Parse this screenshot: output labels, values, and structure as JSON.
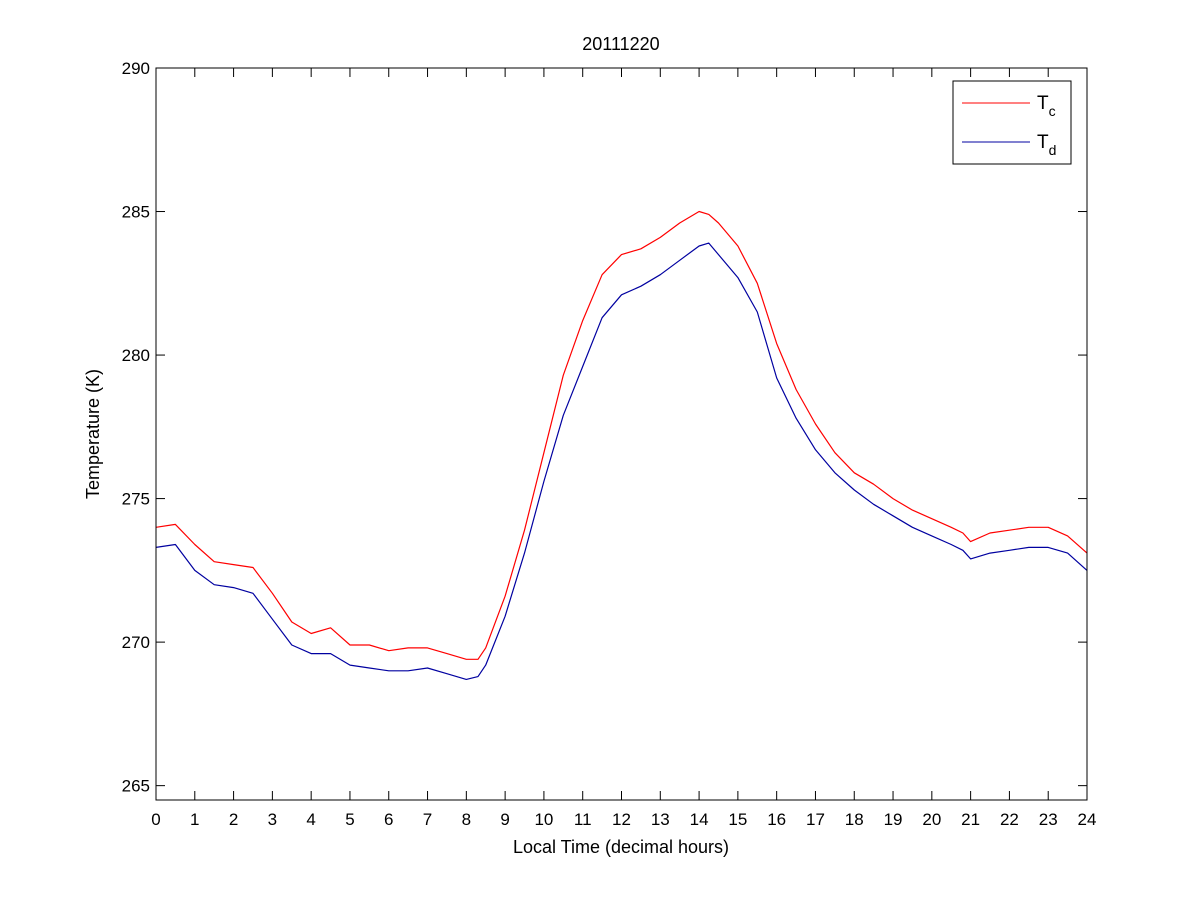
{
  "chart_data": {
    "type": "line",
    "title": "20111220",
    "xlabel": "Local Time (decimal hours)",
    "ylabel": "Temperature (K)",
    "xlim": [
      0,
      24
    ],
    "ylim": [
      264.5,
      290
    ],
    "x_ticks": [
      0,
      1,
      2,
      3,
      4,
      5,
      6,
      7,
      8,
      9,
      10,
      11,
      12,
      13,
      14,
      15,
      16,
      17,
      18,
      19,
      20,
      21,
      22,
      23,
      24
    ],
    "y_ticks": [
      265,
      270,
      275,
      280,
      285,
      290
    ],
    "x_tick_labels": [
      "0",
      "1",
      "2",
      "3",
      "4",
      "5",
      "6",
      "7",
      "8",
      "9",
      "10",
      "11",
      "12",
      "13",
      "14",
      "15",
      "16",
      "17",
      "18",
      "19",
      "20",
      "21",
      "22",
      "23",
      "24"
    ],
    "y_tick_labels": [
      "265",
      "270",
      "275",
      "280",
      "285",
      "290"
    ],
    "grid": false,
    "legend_position": "top-right",
    "series": [
      {
        "name": "T",
        "subscript": "c",
        "color": "#ff0000",
        "x": [
          0,
          0.5,
          1,
          1.5,
          2,
          2.5,
          3,
          3.5,
          4,
          4.5,
          5,
          5.5,
          6,
          6.5,
          7,
          7.5,
          8,
          8.3,
          8.5,
          9,
          9.5,
          10,
          10.5,
          11,
          11.5,
          12,
          12.5,
          13,
          13.5,
          14,
          14.25,
          14.5,
          15,
          15.5,
          16,
          16.5,
          17,
          17.5,
          18,
          18.5,
          19,
          19.5,
          20,
          20.5,
          20.8,
          21,
          21.5,
          22,
          22.5,
          23,
          23.5,
          24
        ],
        "y": [
          274.0,
          274.1,
          273.4,
          272.8,
          272.7,
          272.6,
          271.7,
          270.7,
          270.3,
          270.5,
          269.9,
          269.9,
          269.7,
          269.8,
          269.8,
          269.6,
          269.4,
          269.4,
          269.8,
          271.6,
          273.9,
          276.6,
          279.3,
          281.2,
          282.8,
          283.5,
          283.7,
          284.1,
          284.6,
          285.0,
          284.9,
          284.6,
          283.8,
          282.5,
          280.4,
          278.8,
          277.6,
          276.6,
          275.9,
          275.5,
          275.0,
          274.6,
          274.3,
          274.0,
          273.8,
          273.5,
          273.8,
          273.9,
          274.0,
          274.0,
          273.7,
          273.1
        ]
      },
      {
        "name": "T",
        "subscript": "d",
        "color": "#0000a0",
        "x": [
          0,
          0.5,
          1,
          1.5,
          2,
          2.5,
          3,
          3.5,
          4,
          4.5,
          5,
          5.5,
          6,
          6.5,
          7,
          7.5,
          8,
          8.3,
          8.5,
          9,
          9.5,
          10,
          10.5,
          11,
          11.5,
          12,
          12.5,
          13,
          13.5,
          14,
          14.25,
          14.5,
          15,
          15.5,
          16,
          16.5,
          17,
          17.5,
          18,
          18.5,
          19,
          19.5,
          20,
          20.5,
          20.8,
          21,
          21.5,
          22,
          22.5,
          23,
          23.5,
          24
        ],
        "y": [
          273.3,
          273.4,
          272.5,
          272.0,
          271.9,
          271.7,
          270.8,
          269.9,
          269.6,
          269.6,
          269.2,
          269.1,
          269.0,
          269.0,
          269.1,
          268.9,
          268.7,
          268.8,
          269.2,
          270.9,
          273.1,
          275.6,
          277.9,
          279.6,
          281.3,
          282.1,
          282.4,
          282.8,
          283.3,
          283.8,
          283.9,
          283.5,
          282.7,
          281.5,
          279.2,
          277.8,
          276.7,
          275.9,
          275.3,
          274.8,
          274.4,
          274.0,
          273.7,
          273.4,
          273.2,
          272.9,
          273.1,
          273.2,
          273.3,
          273.3,
          273.1,
          272.5
        ]
      }
    ]
  }
}
